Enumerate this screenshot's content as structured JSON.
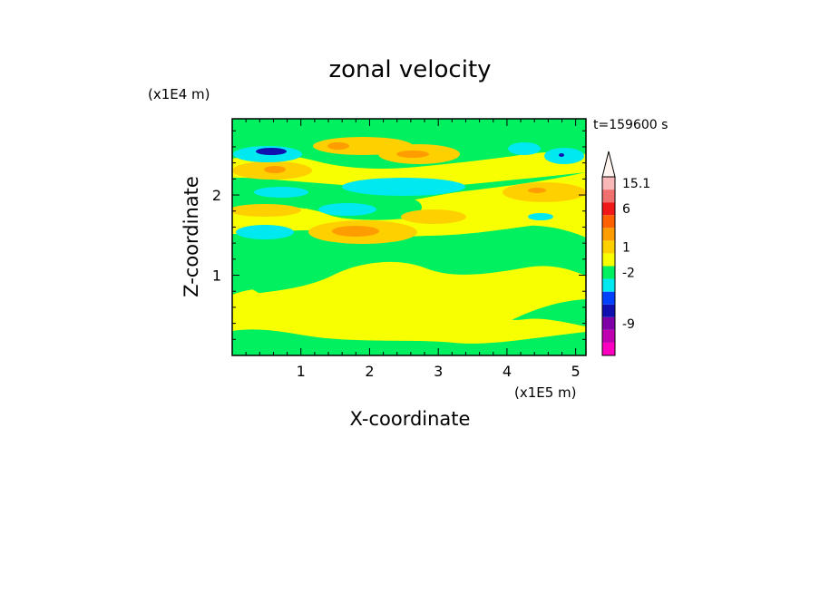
{
  "chart_data": {
    "type": "heatmap",
    "title": "zonal velocity",
    "xlabel": "X-coordinate",
    "ylabel": "Z-coordinate",
    "x_scale_label": "(x1E5 m)",
    "y_scale_label": "(x1E4 m)",
    "time_label": "t=159600 s",
    "xlim": [
      0,
      5.15
    ],
    "ylim": [
      0,
      2.95
    ],
    "x_ticks": [
      {
        "value": 1,
        "label": "1"
      },
      {
        "value": 2,
        "label": "2"
      },
      {
        "value": 3,
        "label": "3"
      },
      {
        "value": 4,
        "label": "4"
      },
      {
        "value": 5,
        "label": "5"
      }
    ],
    "y_ticks": [
      {
        "value": 1,
        "label": "1"
      },
      {
        "value": 2,
        "label": "2"
      }
    ],
    "colorbar": {
      "bands": [
        {
          "color": "#ff00c0"
        },
        {
          "color": "#c000b0"
        },
        {
          "color": "#8000a8"
        },
        {
          "color": "#1010b0"
        },
        {
          "color": "#0040ff"
        },
        {
          "color": "#00e8f0"
        },
        {
          "color": "#00f060"
        },
        {
          "color": "#f8ff00"
        },
        {
          "color": "#ffd000"
        },
        {
          "color": "#ff9c00"
        },
        {
          "color": "#ff6000"
        },
        {
          "color": "#f01818"
        },
        {
          "color": "#f07070"
        },
        {
          "color": "#f8b8b8"
        },
        {
          "color": "#fff4f0"
        }
      ],
      "labels": [
        {
          "text": "15.1",
          "band": 13
        },
        {
          "text": "6",
          "band": 11
        },
        {
          "text": "1",
          "band": 8
        },
        {
          "text": "-2",
          "band": 6
        },
        {
          "text": "-9",
          "band": 2
        }
      ]
    },
    "field_colors": {
      "background": "#f8ff00",
      "neg_weak": "#00f060",
      "neg_mid": "#00e8f0",
      "neg_strong": "#1010b0",
      "pos_weak": "#ffd000",
      "pos_mid": "#ff9c00"
    }
  }
}
